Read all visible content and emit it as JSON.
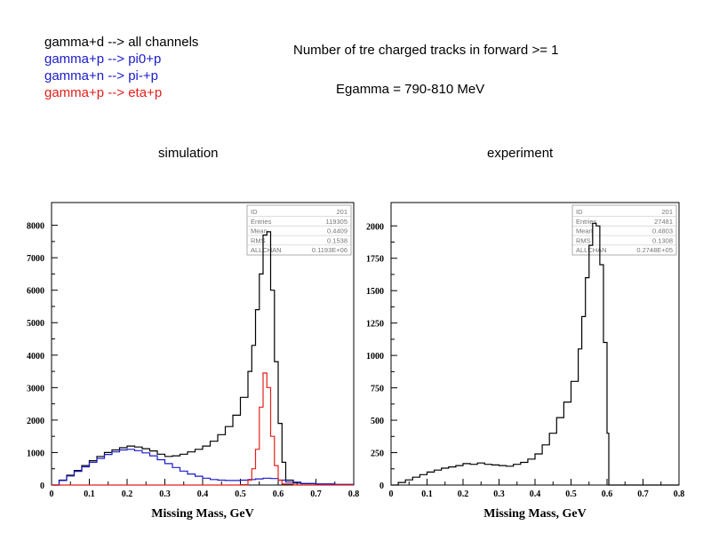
{
  "legend": {
    "items": [
      {
        "label": "gamma+d --> all channels",
        "color": "#000000"
      },
      {
        "label": "gamma+p --> pi0+p",
        "color": "#1a1acc"
      },
      {
        "label": "gamma+n --> pi-+p",
        "color": "#1a1acc"
      },
      {
        "label": "gamma+p --> eta+p",
        "color": "#e0201c"
      }
    ]
  },
  "header": {
    "title": "Number of tre charged tracks in forward >= 1",
    "subtitle": "Egamma = 790-810 MeV"
  },
  "panels": {
    "left_label": "simulation",
    "right_label": "experiment"
  },
  "chart_data": [
    {
      "type": "line",
      "title": "simulation",
      "xlabel": "Missing Mass, GeV",
      "ylabel": "",
      "xlim": [
        0,
        0.8
      ],
      "ylim": [
        0,
        8700
      ],
      "xticks": [
        "0",
        "0.1",
        "0.2",
        "0.3",
        "0.4",
        "0.5",
        "0.6",
        "0.7",
        "0.8"
      ],
      "yticks": [
        "0",
        "1000",
        "2000",
        "3000",
        "4000",
        "5000",
        "6000",
        "7000",
        "8000"
      ],
      "stats": [
        {
          "key": "ID",
          "value": "201"
        },
        {
          "key": "Entries",
          "value": "119305"
        },
        {
          "key": "Mean",
          "value": "0.4409"
        },
        {
          "key": "RMS",
          "value": "0.1538"
        },
        {
          "key": "ALLCHAN",
          "value": "0.1193E+06"
        }
      ],
      "series": [
        {
          "color": "#000000",
          "x": [
            0,
            0.02,
            0.04,
            0.06,
            0.08,
            0.1,
            0.12,
            0.14,
            0.16,
            0.18,
            0.2,
            0.22,
            0.24,
            0.26,
            0.28,
            0.3,
            0.32,
            0.34,
            0.36,
            0.38,
            0.4,
            0.42,
            0.44,
            0.46,
            0.48,
            0.5,
            0.52,
            0.53,
            0.54,
            0.55,
            0.56,
            0.57,
            0.58,
            0.59,
            0.6,
            0.61,
            0.62,
            0.64,
            0.66,
            0.7,
            0.75,
            0.8
          ],
          "y": [
            0,
            150,
            300,
            450,
            600,
            750,
            880,
            1000,
            1080,
            1150,
            1200,
            1170,
            1120,
            1050,
            950,
            880,
            900,
            950,
            1020,
            1100,
            1200,
            1350,
            1550,
            1800,
            2150,
            2700,
            3500,
            4300,
            5400,
            6500,
            7700,
            7800,
            6000,
            3800,
            1900,
            700,
            150,
            60,
            40,
            30,
            20,
            10
          ]
        },
        {
          "color": "#1a1acc",
          "x": [
            0,
            0.02,
            0.04,
            0.06,
            0.08,
            0.1,
            0.12,
            0.14,
            0.16,
            0.18,
            0.2,
            0.22,
            0.24,
            0.26,
            0.28,
            0.3,
            0.32,
            0.34,
            0.36,
            0.38,
            0.4,
            0.42,
            0.44,
            0.46,
            0.48,
            0.5,
            0.52,
            0.54,
            0.56,
            0.58,
            0.6,
            0.62,
            0.66,
            0.7,
            0.75,
            0.8
          ],
          "y": [
            0,
            140,
            280,
            420,
            560,
            700,
            820,
            940,
            1020,
            1080,
            1100,
            1060,
            990,
            900,
            780,
            660,
            540,
            430,
            340,
            270,
            210,
            170,
            150,
            140,
            140,
            150,
            170,
            190,
            210,
            200,
            150,
            90,
            50,
            30,
            15,
            5
          ]
        },
        {
          "color": "#e0201c",
          "x": [
            0,
            0.1,
            0.2,
            0.3,
            0.4,
            0.48,
            0.5,
            0.52,
            0.53,
            0.54,
            0.55,
            0.56,
            0.57,
            0.58,
            0.59,
            0.6,
            0.61,
            0.64,
            0.7,
            0.8
          ],
          "y": [
            0,
            0,
            0,
            0,
            0,
            0,
            10,
            150,
            500,
            1100,
            2400,
            3450,
            3000,
            1500,
            600,
            150,
            30,
            0,
            0,
            0
          ]
        }
      ]
    },
    {
      "type": "line",
      "title": "experiment",
      "xlabel": "Missing Mass, GeV",
      "ylabel": "",
      "xlim": [
        0,
        0.8
      ],
      "ylim": [
        0,
        2180
      ],
      "xticks": [
        "0",
        "0.1",
        "0.2",
        "0.3",
        "0.4",
        "0.5",
        "0.6",
        "0.7",
        "0.8"
      ],
      "yticks": [
        "0",
        "250",
        "500",
        "750",
        "1000",
        "1250",
        "1500",
        "1750",
        "2000"
      ],
      "stats": [
        {
          "key": "ID",
          "value": "201"
        },
        {
          "key": "Entries",
          "value": "27481"
        },
        {
          "key": "Mean",
          "value": "0.4803"
        },
        {
          "key": "RMS",
          "value": "0.1308"
        },
        {
          "key": "ALLCHAN",
          "value": "0.2748E+05"
        }
      ],
      "series": [
        {
          "color": "#000000",
          "x": [
            0,
            0.02,
            0.04,
            0.06,
            0.08,
            0.1,
            0.12,
            0.14,
            0.16,
            0.18,
            0.2,
            0.22,
            0.24,
            0.26,
            0.28,
            0.3,
            0.32,
            0.34,
            0.36,
            0.38,
            0.4,
            0.42,
            0.44,
            0.46,
            0.48,
            0.5,
            0.52,
            0.53,
            0.54,
            0.55,
            0.56,
            0.57,
            0.58,
            0.59,
            0.6,
            0.605,
            0.62,
            0.7,
            0.8
          ],
          "y": [
            0,
            20,
            40,
            60,
            80,
            100,
            115,
            130,
            140,
            150,
            165,
            160,
            170,
            160,
            155,
            150,
            145,
            160,
            175,
            200,
            240,
            310,
            400,
            520,
            640,
            800,
            1050,
            1300,
            1600,
            1850,
            2020,
            2000,
            1700,
            1100,
            400,
            0,
            0,
            0,
            0
          ]
        }
      ]
    }
  ]
}
